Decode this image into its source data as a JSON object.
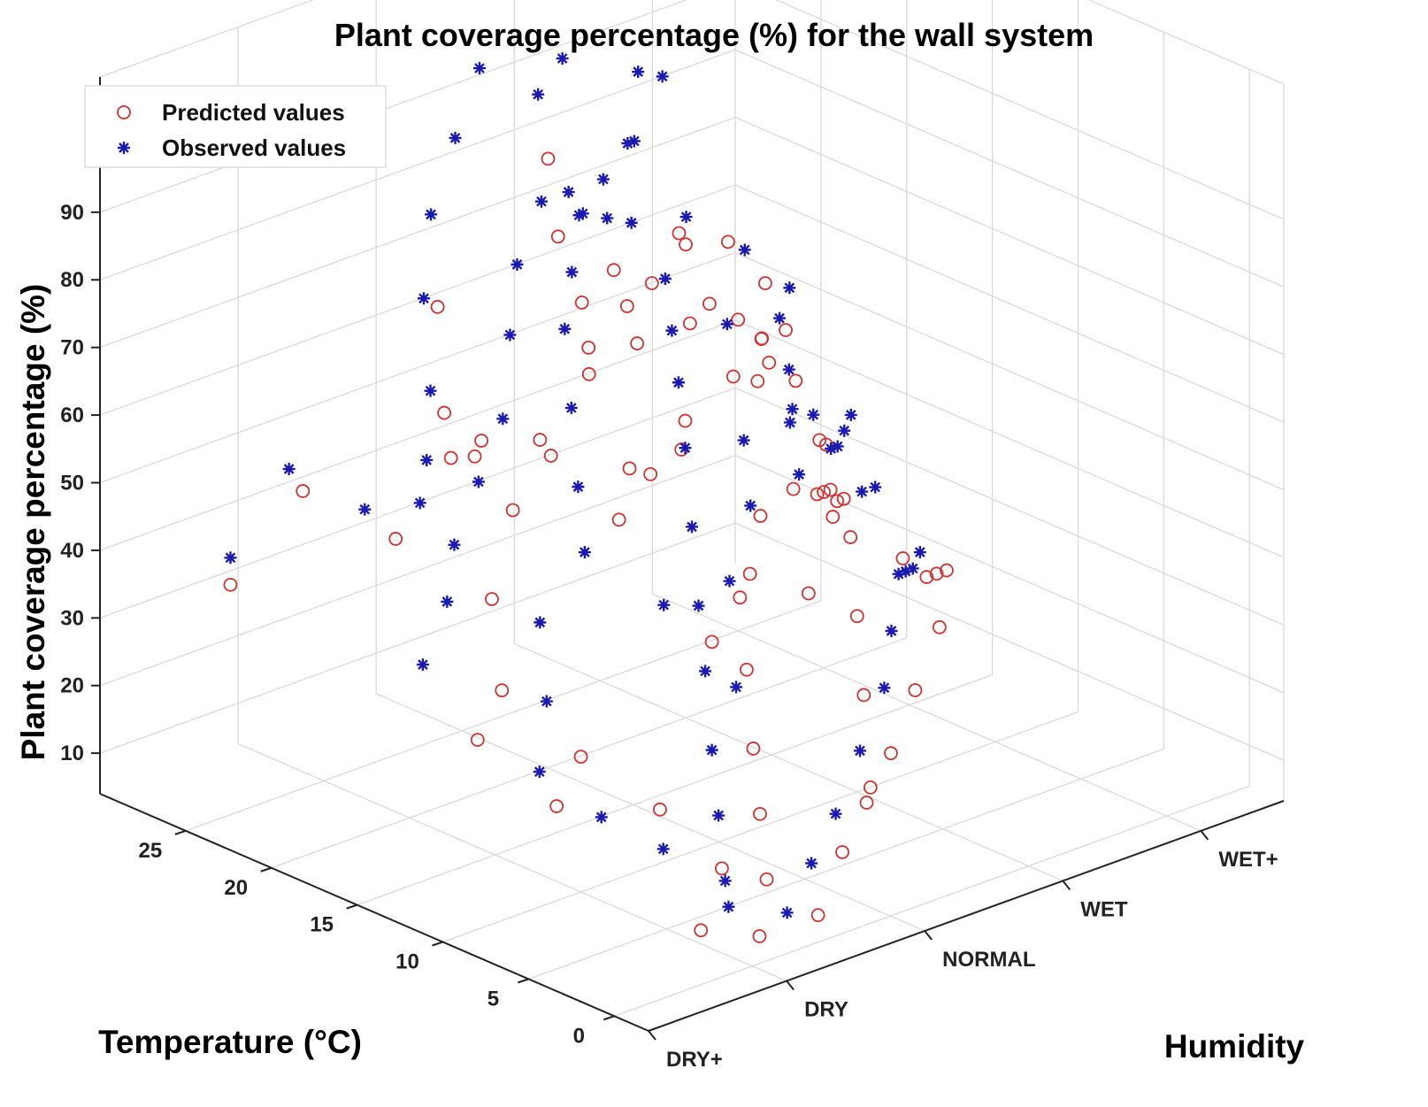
{
  "chart_data": {
    "type": "scatter3d",
    "title": "Plant coverage percentage (%) for the wall system",
    "xlabel": "Humidity",
    "ylabel": "Temperature (°C)",
    "zlabel": "Plant coverage percentage (%)",
    "x_categories": [
      "DRY+",
      "DRY",
      "NORMAL",
      "WET",
      "WET+"
    ],
    "y_ticks": [
      0,
      5,
      10,
      15,
      20,
      25
    ],
    "z_ticks": [
      10,
      20,
      30,
      40,
      50,
      60,
      70,
      80,
      90
    ],
    "xlim": [
      0,
      4.6
    ],
    "ylim": [
      -2,
      30
    ],
    "zlim": [
      4,
      110
    ],
    "grid": true,
    "legend_position": "top-left",
    "colors": {
      "predicted": "#cc3333",
      "observed": "#1a1ab0"
    },
    "series": [
      {
        "name": "Predicted values",
        "marker": "circle",
        "points": [
          [
            0.2,
            24,
            40
          ],
          [
            0.6,
            23,
            52
          ],
          [
            0.9,
            20,
            46
          ],
          [
            1.1,
            17,
            60
          ],
          [
            1.3,
            20,
            55
          ],
          [
            1.5,
            22,
            58
          ],
          [
            1.7,
            24,
            70
          ],
          [
            0.9,
            15,
            66
          ],
          [
            1.2,
            14,
            65
          ],
          [
            1.4,
            11,
            55
          ],
          [
            1.6,
            12,
            60
          ],
          [
            1.8,
            16,
            72
          ],
          [
            2.0,
            18,
            75
          ],
          [
            2.2,
            21,
            80
          ],
          [
            2.5,
            24,
            86
          ],
          [
            2.1,
            13,
            58
          ],
          [
            2.3,
            10,
            50
          ],
          [
            2.6,
            14,
            64
          ],
          [
            2.8,
            17,
            70
          ],
          [
            3.0,
            20,
            74
          ],
          [
            3.2,
            22,
            72
          ],
          [
            2.4,
            8,
            40
          ],
          [
            2.7,
            9,
            48
          ],
          [
            2.9,
            11,
            55
          ],
          [
            3.1,
            13,
            52
          ],
          [
            3.3,
            16,
            56
          ],
          [
            3.6,
            19,
            58
          ],
          [
            3.8,
            22,
            52
          ],
          [
            4.0,
            25,
            50
          ],
          [
            4.3,
            28,
            56
          ],
          [
            0.7,
            9,
            20
          ],
          [
            1.0,
            10,
            24
          ],
          [
            1.2,
            7,
            18
          ],
          [
            1.4,
            5,
            10
          ],
          [
            1.6,
            4,
            8
          ],
          [
            1.8,
            6,
            14
          ],
          [
            2.0,
            8,
            20
          ],
          [
            2.2,
            10,
            28
          ],
          [
            2.4,
            12,
            35
          ],
          [
            2.6,
            6,
            12
          ],
          [
            2.8,
            8,
            22
          ],
          [
            3.0,
            10,
            30
          ],
          [
            3.2,
            12,
            38
          ],
          [
            3.4,
            14,
            40
          ],
          [
            3.6,
            16,
            36
          ],
          [
            3.8,
            18,
            34
          ],
          [
            4.0,
            20,
            30
          ],
          [
            4.2,
            22,
            26
          ],
          [
            4.4,
            25,
            22
          ],
          [
            1.0,
            3,
            6
          ],
          [
            1.3,
            2,
            4
          ],
          [
            1.6,
            1,
            6
          ],
          [
            1.9,
            2,
            12
          ],
          [
            2.2,
            3,
            16
          ],
          [
            2.5,
            4,
            20
          ],
          [
            2.8,
            5,
            26
          ],
          [
            3.1,
            6,
            32
          ],
          [
            3.4,
            8,
            36
          ],
          [
            3.7,
            11,
            30
          ],
          [
            4.0,
            14,
            24
          ],
          [
            4.2,
            17,
            22
          ],
          [
            0.5,
            12,
            28
          ],
          [
            0.8,
            13,
            32
          ],
          [
            1.1,
            16,
            40
          ],
          [
            1.5,
            18,
            48
          ],
          [
            1.9,
            19,
            52
          ],
          [
            2.3,
            20,
            60
          ],
          [
            2.7,
            21,
            66
          ],
          [
            3.1,
            25,
            64
          ],
          [
            3.5,
            26,
            58
          ],
          [
            3.9,
            27,
            48
          ],
          [
            1.7,
            8,
            38
          ],
          [
            2.1,
            9,
            44
          ],
          [
            2.5,
            16,
            56
          ],
          [
            2.9,
            15,
            60
          ],
          [
            3.3,
            18,
            60
          ],
          [
            3.7,
            21,
            62
          ],
          [
            4.1,
            24,
            44
          ],
          [
            2.0,
            14,
            54
          ],
          [
            2.4,
            18,
            66
          ]
        ]
      },
      {
        "name": "Observed values",
        "marker": "star",
        "points": [
          [
            0.2,
            24,
            44
          ],
          [
            0.5,
            23,
            56
          ],
          [
            0.8,
            21,
            50
          ],
          [
            1.0,
            19,
            58
          ],
          [
            1.2,
            21,
            48
          ],
          [
            1.4,
            22,
            62
          ],
          [
            1.6,
            24,
            72
          ],
          [
            1.9,
            26,
            80
          ],
          [
            2.2,
            27,
            88
          ],
          [
            2.5,
            28,
            95
          ],
          [
            2.8,
            27,
            90
          ],
          [
            3.1,
            28,
            92
          ],
          [
            3.4,
            26,
            90
          ],
          [
            3.7,
            27,
            86
          ],
          [
            0.7,
            10,
            24
          ],
          [
            1.0,
            12,
            30
          ],
          [
            1.2,
            14,
            38
          ],
          [
            1.4,
            13,
            48
          ],
          [
            1.6,
            15,
            54
          ],
          [
            1.8,
            17,
            62
          ],
          [
            2.0,
            19,
            70
          ],
          [
            2.3,
            21,
            74
          ],
          [
            2.6,
            23,
            78
          ],
          [
            2.9,
            24,
            80
          ],
          [
            3.2,
            25,
            82
          ],
          [
            3.5,
            24,
            70
          ],
          [
            3.8,
            23,
            64
          ],
          [
            4.0,
            22,
            58
          ],
          [
            4.3,
            25,
            48
          ],
          [
            0.9,
            8,
            18
          ],
          [
            1.1,
            6,
            14
          ],
          [
            1.3,
            4,
            10
          ],
          [
            1.5,
            6,
            16
          ],
          [
            1.7,
            8,
            22
          ],
          [
            1.9,
            10,
            30
          ],
          [
            2.1,
            12,
            36
          ],
          [
            2.3,
            14,
            44
          ],
          [
            2.5,
            16,
            52
          ],
          [
            2.7,
            18,
            58
          ],
          [
            2.9,
            20,
            62
          ],
          [
            3.1,
            22,
            66
          ],
          [
            3.3,
            20,
            60
          ],
          [
            3.5,
            18,
            54
          ],
          [
            3.7,
            16,
            48
          ],
          [
            3.9,
            18,
            42
          ],
          [
            4.1,
            20,
            36
          ],
          [
            4.3,
            22,
            32
          ],
          [
            4.5,
            26,
            30
          ],
          [
            1.2,
            3,
            8
          ],
          [
            1.5,
            2,
            6
          ],
          [
            1.8,
            3,
            10
          ],
          [
            2.1,
            4,
            14
          ],
          [
            2.4,
            5,
            20
          ],
          [
            2.7,
            6,
            26
          ],
          [
            3.0,
            8,
            30
          ],
          [
            3.3,
            10,
            34
          ],
          [
            3.6,
            12,
            30
          ],
          [
            3.9,
            14,
            26
          ],
          [
            4.2,
            16,
            24
          ],
          [
            0.6,
            16,
            34
          ],
          [
            0.9,
            17,
            40
          ],
          [
            1.2,
            19,
            44
          ],
          [
            1.5,
            20,
            50
          ],
          [
            1.8,
            21,
            56
          ],
          [
            2.1,
            23,
            64
          ],
          [
            2.4,
            25,
            70
          ],
          [
            2.7,
            26,
            76
          ],
          [
            3.0,
            26,
            72
          ],
          [
            3.3,
            27,
            68
          ],
          [
            3.6,
            28,
            64
          ],
          [
            2.0,
            9,
            28
          ],
          [
            2.2,
            11,
            40
          ],
          [
            2.6,
            13,
            46
          ],
          [
            2.8,
            15,
            52
          ],
          [
            3.2,
            15,
            44
          ],
          [
            3.4,
            17,
            50
          ],
          [
            3.8,
            19,
            44
          ],
          [
            4.0,
            17,
            34
          ],
          [
            4.4,
            21,
            26
          ],
          [
            1.6,
            10,
            42
          ],
          [
            2.4,
            22,
            84
          ],
          [
            3.0,
            23,
            86
          ]
        ]
      }
    ],
    "legend": [
      "Predicted values",
      "Observed values"
    ]
  }
}
